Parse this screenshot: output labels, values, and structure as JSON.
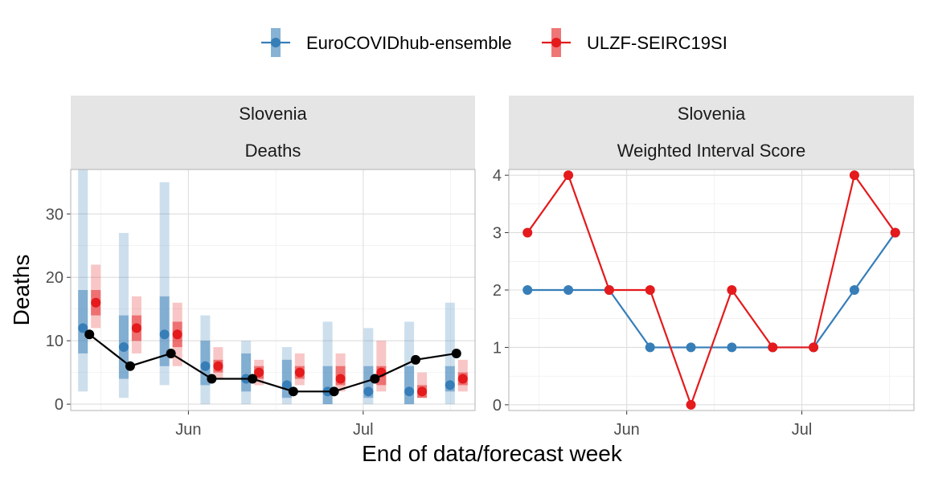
{
  "legend": {
    "items": [
      {
        "label": "EuroCOVIDhub-ensemble",
        "color": "#377EB8"
      },
      {
        "label": "ULZF-SEIRC19SI",
        "color": "#E41A1C"
      }
    ]
  },
  "axes": {
    "xlabel": "End of data/forecast week",
    "ylabel": "Deaths"
  },
  "chart_data": [
    {
      "type": "line",
      "facet": [
        "Slovenia",
        "Deaths"
      ],
      "x_ticks": [
        "Jun",
        "Jul"
      ],
      "ylim": [
        -1,
        37
      ],
      "y_ticks": [
        0,
        10,
        20,
        30
      ],
      "dates": [
        "05/15",
        "05/22",
        "05/29",
        "06/05",
        "06/12",
        "06/19",
        "06/26",
        "07/03",
        "07/10",
        "07/17"
      ],
      "observed": {
        "values": [
          11,
          6,
          8,
          4,
          4,
          2,
          2,
          4,
          7,
          8
        ],
        "color": "#000000"
      },
      "series": [
        {
          "name": "EuroCOVIDhub-ensemble",
          "median": [
            12,
            9,
            11,
            6,
            4,
            3,
            2,
            2,
            2,
            3
          ],
          "interval_50": [
            [
              8,
              18
            ],
            [
              4,
              14
            ],
            [
              6,
              17
            ],
            [
              3,
              10
            ],
            [
              2,
              8
            ],
            [
              1,
              7
            ],
            [
              0,
              6
            ],
            [
              1,
              6
            ],
            [
              0,
              6
            ],
            [
              2,
              6
            ]
          ],
          "interval_90": [
            [
              2,
              37
            ],
            [
              1,
              27
            ],
            [
              3,
              35
            ],
            [
              0,
              14
            ],
            [
              0,
              10
            ],
            [
              0,
              9
            ],
            [
              0,
              13
            ],
            [
              0,
              12
            ],
            [
              0,
              13
            ],
            [
              0,
              16
            ]
          ]
        },
        {
          "name": "ULZF-SEIRC19SI",
          "median": [
            16,
            12,
            11,
            6,
            5,
            5,
            4,
            5,
            2,
            4
          ],
          "interval_50": [
            [
              14,
              18
            ],
            [
              10,
              14
            ],
            [
              9,
              13
            ],
            [
              5,
              7
            ],
            [
              4,
              6
            ],
            [
              4,
              6
            ],
            [
              3,
              6
            ],
            [
              3,
              6
            ],
            [
              1,
              3
            ],
            [
              3,
              5
            ]
          ],
          "interval_90": [
            [
              12,
              22
            ],
            [
              8,
              17
            ],
            [
              6,
              16
            ],
            [
              4,
              9
            ],
            [
              3,
              7
            ],
            [
              3,
              8
            ],
            [
              2,
              8
            ],
            [
              2,
              10
            ],
            [
              1,
              5
            ],
            [
              2,
              7
            ]
          ]
        }
      ]
    },
    {
      "type": "line",
      "facet": [
        "Slovenia",
        "Weighted Interval Score"
      ],
      "x_ticks": [
        "Jun",
        "Jul"
      ],
      "ylim": [
        -0.1,
        4.1
      ],
      "y_ticks": [
        0,
        1,
        2,
        3,
        4
      ],
      "dates": [
        "05/15",
        "05/22",
        "05/29",
        "06/05",
        "06/12",
        "06/19",
        "06/26",
        "07/03",
        "07/10",
        "07/17"
      ],
      "series": [
        {
          "name": "EuroCOVIDhub-ensemble",
          "values": [
            2,
            2,
            2,
            1,
            1,
            1,
            1,
            1,
            2,
            3
          ]
        },
        {
          "name": "ULZF-SEIRC19SI",
          "values": [
            3,
            4,
            2,
            2,
            0,
            2,
            1,
            1,
            4,
            3
          ]
        }
      ]
    }
  ]
}
